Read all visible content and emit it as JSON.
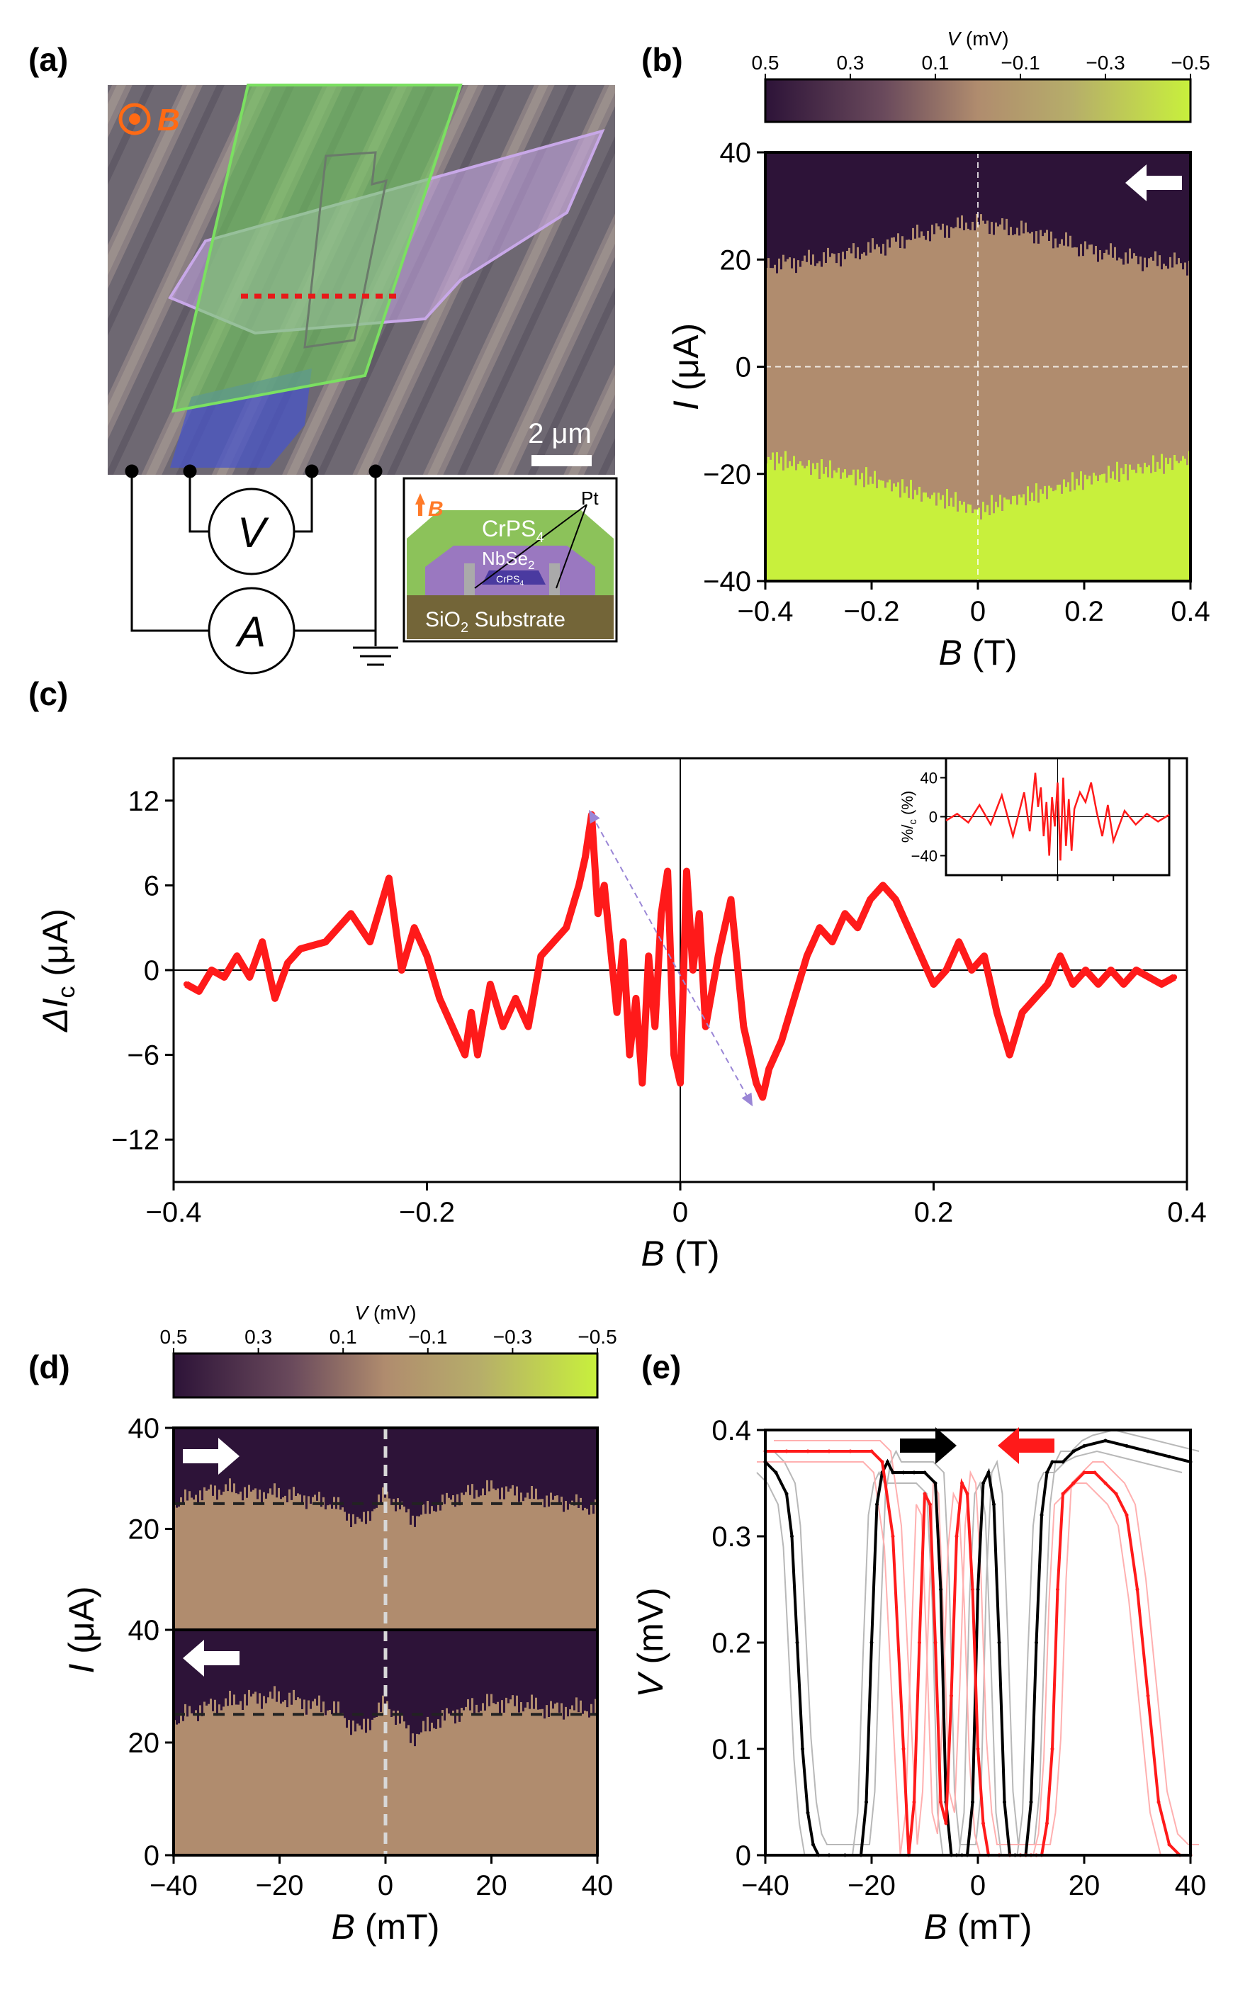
{
  "figure": {
    "panel_a": {
      "label": "(a)",
      "field_label": "B",
      "scale_bar": "2 μm",
      "meter_v": "V",
      "meter_a": "A",
      "inset": {
        "b_label": "B",
        "crps4_top": "CrPS",
        "crps4_top_sub": "4",
        "nbse2": "NbSe",
        "nbse2_sub": "2",
        "crps4_small": "CrPS",
        "crps4_small_sub": "4",
        "pt": "Pt",
        "substrate": "SiO",
        "substrate_sub": "2",
        "substrate_rest": " Substrate"
      }
    },
    "colors": {
      "cbar_high": "#2d1338",
      "cbar_mid": "#b08c6e",
      "cbar_low": "#c8f03c",
      "panel_a_green": "#6fd35b",
      "panel_a_purple": "#c8a8e8",
      "trace_red": "#ff1a1a",
      "dashed_lilac": "#9a86d6",
      "inset_crps4": "#8cc25a",
      "inset_nbse2": "#9a78c0",
      "inset_substrate": "#736538"
    }
  },
  "chart_data": [
    {
      "id": "b",
      "type": "heatmap",
      "panel_label": "(b)",
      "xlabel": "B",
      "xunit": " (T)",
      "ylabel": "I",
      "yunit": " (μA)",
      "xlim": [
        -0.4,
        0.4
      ],
      "ylim": [
        -40,
        40
      ],
      "xticks": [
        "−0.4",
        "−0.2",
        "0",
        "0.2",
        "0.4"
      ],
      "yticks": [
        "40",
        "20",
        "0",
        "−20",
        "−40"
      ],
      "colorbar": {
        "label": "V",
        "unit": " (mV)",
        "range": [
          0.5,
          -0.5
        ],
        "ticks": [
          "0.5",
          "0.3",
          "0.1",
          "−0.1",
          "−0.3",
          "−0.5"
        ]
      },
      "sweep_direction": "left",
      "critical_current_upper_uA": {
        "B_T": [
          -0.4,
          -0.3,
          -0.2,
          -0.1,
          -0.05,
          0,
          0.05,
          0.1,
          0.2,
          0.3,
          0.4
        ],
        "I": [
          19,
          20,
          22,
          25,
          26,
          27,
          26,
          25,
          22,
          20,
          19
        ]
      },
      "critical_current_lower_uA": {
        "B_T": [
          -0.4,
          -0.3,
          -0.2,
          -0.1,
          -0.05,
          0,
          0.05,
          0.1,
          0.2,
          0.3,
          0.4
        ],
        "I": [
          -17,
          -19,
          -21,
          -24,
          -25,
          -27,
          -25,
          -24,
          -21,
          -19,
          -17
        ]
      }
    },
    {
      "id": "c",
      "type": "line",
      "panel_label": "(c)",
      "xlabel": "B",
      "xunit": " (T)",
      "ylabel": "ΔI",
      "ylabel_sub": "c",
      "yunit": " (μA)",
      "xlim": [
        -0.4,
        0.4
      ],
      "ylim": [
        -15,
        15
      ],
      "xticks": [
        "−0.4",
        "−0.2",
        "0",
        "0.2",
        "0.4"
      ],
      "yticks": [
        "12",
        "6",
        "0",
        "−6",
        "−12"
      ],
      "series": [
        {
          "x": [
            -0.39,
            -0.38,
            -0.37,
            -0.36,
            -0.35,
            -0.34,
            -0.33,
            -0.32,
            -0.31,
            -0.3,
            -0.28,
            -0.26,
            -0.245,
            -0.23,
            -0.22,
            -0.21,
            -0.2,
            -0.19,
            -0.18,
            -0.17,
            -0.165,
            -0.16,
            -0.15,
            -0.14,
            -0.13,
            -0.12,
            -0.11,
            -0.1,
            -0.09,
            -0.08,
            -0.075,
            -0.07,
            -0.065,
            -0.06,
            -0.05,
            -0.045,
            -0.04,
            -0.035,
            -0.03,
            -0.025,
            -0.02,
            -0.015,
            -0.01,
            -0.005,
            0.0,
            0.005,
            0.01,
            0.015,
            0.02,
            0.03,
            0.04,
            0.05,
            0.06,
            0.065,
            0.07,
            0.08,
            0.09,
            0.1,
            0.11,
            0.12,
            0.13,
            0.14,
            0.15,
            0.16,
            0.17,
            0.18,
            0.19,
            0.2,
            0.21,
            0.22,
            0.23,
            0.24,
            0.25,
            0.26,
            0.27,
            0.28,
            0.29,
            0.3,
            0.31,
            0.32,
            0.33,
            0.34,
            0.35,
            0.36,
            0.37,
            0.38,
            0.39
          ],
          "y": [
            -1,
            -1.5,
            0,
            -0.5,
            1,
            -0.5,
            2,
            -2,
            0.5,
            1.5,
            2,
            4,
            2,
            6.5,
            0,
            3,
            1,
            -2,
            -4,
            -6,
            -3,
            -6,
            -1,
            -4,
            -2,
            -4,
            1,
            2,
            3,
            6,
            8,
            11,
            4,
            6,
            -3,
            2,
            -6,
            -2,
            -8,
            1,
            -4,
            4,
            7,
            -6,
            -8,
            7,
            0,
            4,
            -4,
            1,
            5,
            -4,
            -8,
            -9,
            -7,
            -5,
            -2,
            1,
            3,
            2,
            4,
            3,
            5,
            6,
            5,
            3,
            1,
            -1,
            0,
            2,
            0,
            1,
            -3,
            -6,
            -3,
            -2,
            -1,
            1,
            -1,
            0,
            -1,
            0,
            -1,
            0,
            -0.5,
            -1,
            -0.5
          ]
        }
      ],
      "annotation": "dashed double-headed arrow",
      "inset": {
        "ylabel": "%/",
        "ylabel_sub": "c",
        "ylabel_unit": " (%)",
        "yticks": [
          "40",
          "0",
          "−40"
        ],
        "ylim": [
          -60,
          60
        ],
        "x": [
          -0.4,
          -0.36,
          -0.32,
          -0.28,
          -0.24,
          -0.2,
          -0.16,
          -0.12,
          -0.1,
          -0.08,
          -0.07,
          -0.06,
          -0.05,
          -0.04,
          -0.03,
          -0.02,
          -0.01,
          0.0,
          0.01,
          0.02,
          0.03,
          0.04,
          0.05,
          0.06,
          0.08,
          0.1,
          0.12,
          0.14,
          0.16,
          0.18,
          0.2,
          0.24,
          0.28,
          0.32,
          0.36,
          0.4
        ],
        "y": [
          -4,
          3,
          -6,
          12,
          -8,
          22,
          -20,
          25,
          -15,
          45,
          10,
          30,
          -20,
          15,
          -40,
          20,
          -10,
          35,
          -45,
          40,
          -30,
          18,
          -35,
          8,
          25,
          15,
          35,
          5,
          -20,
          12,
          -25,
          6,
          -8,
          3,
          -5,
          2
        ]
      }
    },
    {
      "id": "d",
      "type": "heatmap",
      "panel_label": "(d)",
      "xlabel": "B",
      "xunit": " (mT)",
      "ylabel": "I",
      "yunit": " (μA)",
      "xlim": [
        -40,
        40
      ],
      "xticks": [
        "−40",
        "−20",
        "0",
        "20",
        "40"
      ],
      "colorbar": {
        "label": "V",
        "unit": " (mV)",
        "range": [
          0.5,
          -0.5
        ],
        "ticks": [
          "0.5",
          "0.3",
          "0.1",
          "−0.1",
          "−0.3",
          "−0.5"
        ]
      },
      "subpanels": [
        {
          "sweep_direction": "right",
          "ylim": [
            0,
            40
          ],
          "yticks": [
            "40",
            "20",
            "0"
          ],
          "reference_I_uA": 25,
          "boundary": {
            "B": [
              -40,
              -35,
              -30,
              -25,
              -20,
              -15,
              -10,
              -5,
              0,
              5,
              10,
              15,
              20,
              25,
              30,
              35,
              40
            ],
            "I": [
              25,
              27,
              28,
              27,
              27,
              26,
              25,
              21,
              27,
              22,
              25,
              27,
              28,
              27,
              26,
              25,
              24
            ]
          }
        },
        {
          "sweep_direction": "left",
          "ylim": [
            0,
            40
          ],
          "yticks": [
            "40",
            "20",
            "0"
          ],
          "reference_I_uA": 25,
          "boundary": {
            "B": [
              -40,
              -35,
              -30,
              -25,
              -20,
              -15,
              -10,
              -5,
              0,
              5,
              10,
              15,
              20,
              25,
              30,
              35,
              40
            ],
            "I": [
              24,
              26,
              27,
              28,
              28,
              27,
              26,
              22,
              27,
              21,
              24,
              26,
              27,
              27,
              26,
              26,
              26
            ]
          }
        }
      ]
    },
    {
      "id": "e",
      "type": "line",
      "panel_label": "(e)",
      "xlabel": "B",
      "xunit": " (mT)",
      "ylabel": "V",
      "yunit": " (mV)",
      "xlim": [
        -40,
        40
      ],
      "ylim": [
        0,
        0.4
      ],
      "xticks": [
        "−40",
        "−20",
        "0",
        "20",
        "40"
      ],
      "yticks": [
        "0.4",
        "0.3",
        "0.2",
        "0.1",
        "0"
      ],
      "series": [
        {
          "direction": "right",
          "x": [
            -40,
            -38,
            -36,
            -35,
            -34,
            -33,
            -32,
            -31,
            -30,
            -28,
            -25,
            -22,
            -21,
            -20,
            -19,
            -18,
            -17,
            -16,
            -14,
            -12,
            -10,
            -8,
            -7,
            -6,
            -5,
            -4,
            -3,
            -2,
            -1,
            0,
            1,
            2,
            3,
            4,
            5,
            6,
            7,
            8,
            9,
            10,
            11,
            12,
            13,
            14,
            16,
            18,
            20,
            24,
            28,
            32,
            36,
            40
          ],
          "y": [
            0.37,
            0.36,
            0.34,
            0.3,
            0.2,
            0.1,
            0.04,
            0.01,
            0,
            0,
            0,
            0,
            0.05,
            0.2,
            0.33,
            0.36,
            0.37,
            0.36,
            0.36,
            0.36,
            0.36,
            0.35,
            0.25,
            0.05,
            0,
            0,
            0,
            0,
            0.05,
            0.25,
            0.35,
            0.36,
            0.33,
            0.2,
            0.05,
            0,
            0,
            0,
            0,
            0.05,
            0.2,
            0.32,
            0.36,
            0.37,
            0.37,
            0.38,
            0.385,
            0.39,
            0.385,
            0.38,
            0.375,
            0.37
          ]
        },
        {
          "direction": "left",
          "x": [
            40,
            38,
            36,
            34,
            32,
            30,
            28,
            26,
            24,
            22,
            20,
            18,
            16,
            15,
            14,
            13,
            12,
            11,
            10,
            9,
            8,
            6,
            4,
            2,
            1,
            0,
            -1,
            -2,
            -3,
            -4,
            -5,
            -6,
            -7,
            -8,
            -9,
            -10,
            -11,
            -12,
            -13,
            -14,
            -16,
            -18,
            -20,
            -24,
            -28,
            -32,
            -36,
            -40
          ],
          "y": [
            0,
            0,
            0.01,
            0.05,
            0.15,
            0.25,
            0.32,
            0.34,
            0.35,
            0.36,
            0.36,
            0.35,
            0.34,
            0.25,
            0.1,
            0.03,
            0,
            0,
            0,
            0,
            0,
            0,
            0,
            0,
            0.03,
            0.1,
            0.25,
            0.34,
            0.35,
            0.3,
            0.15,
            0.03,
            0.05,
            0.2,
            0.33,
            0.34,
            0.2,
            0.05,
            0,
            0.1,
            0.3,
            0.37,
            0.38,
            0.38,
            0.38,
            0.38,
            0.38,
            0.38
          ]
        }
      ]
    }
  ]
}
